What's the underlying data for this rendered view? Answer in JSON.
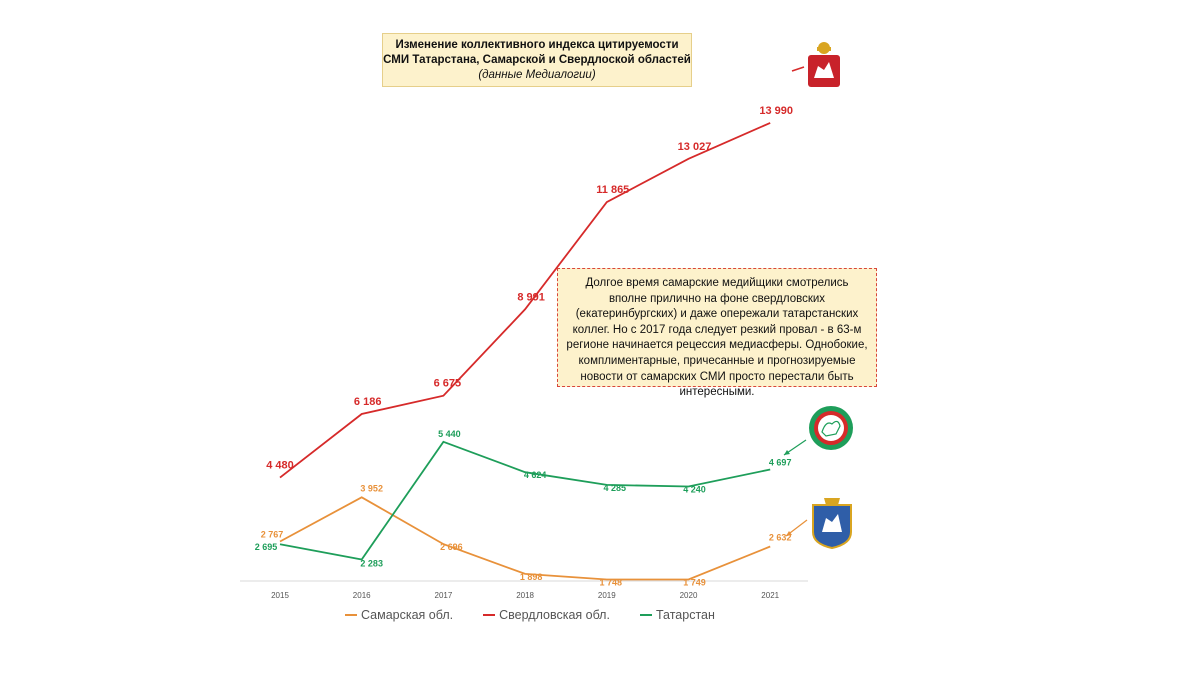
{
  "chart_data": {
    "type": "line",
    "title": "Изменение коллективного индекса цитируемости\nСМИ Татарстана, Самарской и Свердлоской областей",
    "subtitle": "(данные Медиалогии)",
    "x": [
      "2015",
      "2016",
      "2017",
      "2018",
      "2019",
      "2020",
      "2021"
    ],
    "series": [
      {
        "name": "Самарская обл.",
        "color": "#e8913a",
        "values": [
          2767,
          3952,
          2696,
          1898,
          1748,
          1749,
          2632
        ],
        "labels": [
          "2 767",
          "3 952",
          "2 696",
          "1 898",
          "1 748",
          "1 749",
          "2 632"
        ]
      },
      {
        "name": "Свердловская обл.",
        "color": "#d62a2a",
        "values": [
          4480,
          6186,
          6675,
          8991,
          11865,
          13027,
          13990
        ],
        "labels": [
          "4 480",
          "6 186",
          "6 675",
          "8 991",
          "11 865",
          "13 027",
          "13 990"
        ]
      },
      {
        "name": "Татарстан",
        "color": "#1e9e5a",
        "values": [
          2695,
          2283,
          5440,
          4624,
          4285,
          4240,
          4697
        ],
        "labels": [
          "2 695",
          "2 283",
          "5 440",
          "4 624",
          "4 285",
          "4 240",
          "4 697"
        ]
      }
    ],
    "ylim": [
      1000,
      15000
    ],
    "grid": false,
    "legend_position": "bottom"
  },
  "note": "Долгое время самарские медийщики смотрелись вполне прилично на фоне свердловских (екатеринбургских) и даже опережали татарстанских коллег. Но с 2017 года следует резкий провал - в 63-м регионе начинается рецессия медиасферы. Однобокие, комплиментарные, причесанные и прогнозируемые новости от самарских СМИ просто перестали быть интересными.",
  "icons": {
    "sverdlovsk": "sverdlovsk-coat-of-arms-icon",
    "tatarstan": "tatarstan-emblem-icon",
    "samara": "samara-coat-of-arms-icon"
  }
}
